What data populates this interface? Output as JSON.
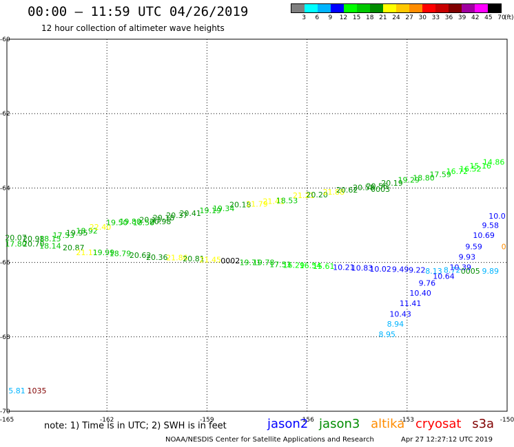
{
  "header": {
    "title": "00:00 – 11:59 UTC 04/26/2019",
    "subtitle": "12 hour collection of altimeter wave heights"
  },
  "colorbar": {
    "colors": [
      "#7f7f7f",
      "#00ffff",
      "#00b4ff",
      "#0000ff",
      "#00ff00",
      "#00c800",
      "#008c00",
      "#ffff00",
      "#ffc800",
      "#ff8c00",
      "#ff0000",
      "#c80000",
      "#800000",
      "#a000a0",
      "#ff00ff",
      "#000000"
    ],
    "labels": [
      "3",
      "6",
      "9",
      "12",
      "15",
      "18",
      "21",
      "24",
      "27",
      "30",
      "33",
      "36",
      "39",
      "42",
      "45",
      "70",
      "(ft)"
    ]
  },
  "chart_data": {
    "type": "scatter",
    "title": "00:00 – 11:59 UTC 04/26/2019",
    "xlim": [
      -165,
      -150
    ],
    "ylim": [
      -70,
      -60
    ],
    "x_ticks": [
      "-165",
      "-162",
      "-159",
      "-156",
      "-153",
      "-150"
    ],
    "y_ticks": [
      "-60",
      "-62",
      "-64",
      "-66",
      "-68",
      "-70"
    ],
    "grid": true,
    "points": [
      {
        "x": -164.73,
        "y": -65.33,
        "text": "20.07",
        "color": "#008c00"
      },
      {
        "x": -164.73,
        "y": -65.5,
        "text": "17.80",
        "color": "#00c800"
      },
      {
        "x": -164.2,
        "y": -65.36,
        "text": "20.98",
        "color": "#008c00"
      },
      {
        "x": -164.2,
        "y": -65.5,
        "text": "20.70",
        "color": "#008c00"
      },
      {
        "x": -163.7,
        "y": -65.36,
        "text": "18.15",
        "color": "#00c800"
      },
      {
        "x": -163.7,
        "y": -65.55,
        "text": "18.14",
        "color": "#00c800"
      },
      {
        "x": -163.3,
        "y": -65.27,
        "text": "17.53",
        "color": "#00c800"
      },
      {
        "x": -162.9,
        "y": -65.2,
        "text": "19.95",
        "color": "#008c00"
      },
      {
        "x": -163.0,
        "y": -65.6,
        "text": "20.87",
        "color": "#008c00"
      },
      {
        "x": -162.6,
        "y": -65.15,
        "text": "18.92",
        "color": "#00c800"
      },
      {
        "x": -162.2,
        "y": -65.05,
        "text": "22.40",
        "color": "#ffff00"
      },
      {
        "x": -162.6,
        "y": -65.73,
        "text": "21.11",
        "color": "#ffff00"
      },
      {
        "x": -162.1,
        "y": -65.73,
        "text": "19.99",
        "color": "#00c800"
      },
      {
        "x": -161.7,
        "y": -64.93,
        "text": "19.50",
        "color": "#00c800"
      },
      {
        "x": -161.3,
        "y": -64.9,
        "text": "19.80",
        "color": "#00c800"
      },
      {
        "x": -161.6,
        "y": -65.76,
        "text": "18.79",
        "color": "#00c800"
      },
      {
        "x": -160.7,
        "y": -64.85,
        "text": "20.13",
        "color": "#008c00"
      },
      {
        "x": -160.9,
        "y": -64.93,
        "text": "18.58",
        "color": "#00c800"
      },
      {
        "x": -160.3,
        "y": -64.8,
        "text": "20.18",
        "color": "#008c00"
      },
      {
        "x": -160.4,
        "y": -64.9,
        "text": "20.98",
        "color": "#008c00"
      },
      {
        "x": -161.0,
        "y": -65.8,
        "text": "20.62",
        "color": "#008c00"
      },
      {
        "x": -160.5,
        "y": -65.86,
        "text": "20.36",
        "color": "#008c00"
      },
      {
        "x": -159.9,
        "y": -64.73,
        "text": "20.37",
        "color": "#008c00"
      },
      {
        "x": -159.5,
        "y": -64.68,
        "text": "20.41",
        "color": "#008c00"
      },
      {
        "x": -159.9,
        "y": -65.87,
        "text": "21.86",
        "color": "#ffff00"
      },
      {
        "x": -159.4,
        "y": -65.9,
        "text": "20.81",
        "color": "#008c00"
      },
      {
        "x": -158.9,
        "y": -64.6,
        "text": "19.19",
        "color": "#00c800"
      },
      {
        "x": -158.5,
        "y": -64.55,
        "text": "19.34",
        "color": "#00c800"
      },
      {
        "x": -158.9,
        "y": -65.92,
        "text": "21.45",
        "color": "#ffff00"
      },
      {
        "x": -158.3,
        "y": -65.95,
        "text": "0002",
        "color": "#000000"
      },
      {
        "x": -158.0,
        "y": -64.45,
        "text": "20.18",
        "color": "#008c00"
      },
      {
        "x": -157.5,
        "y": -64.43,
        "text": "21.79",
        "color": "#ffff00"
      },
      {
        "x": -157.7,
        "y": -66.0,
        "text": "19.71",
        "color": "#00c800"
      },
      {
        "x": -157.3,
        "y": -66.0,
        "text": "19.78",
        "color": "#00c800"
      },
      {
        "x": -157.0,
        "y": -64.35,
        "text": "21.41",
        "color": "#ffff00"
      },
      {
        "x": -156.6,
        "y": -64.33,
        "text": "18.53",
        "color": "#00c800"
      },
      {
        "x": -156.8,
        "y": -66.05,
        "text": "17.53",
        "color": "#00c800"
      },
      {
        "x": -156.4,
        "y": -66.07,
        "text": "16.29",
        "color": "#00ff00"
      },
      {
        "x": -156.1,
        "y": -64.2,
        "text": "21.21",
        "color": "#ffff00"
      },
      {
        "x": -155.7,
        "y": -64.18,
        "text": "20.20",
        "color": "#008c00"
      },
      {
        "x": -155.9,
        "y": -66.08,
        "text": "16.54",
        "color": "#00ff00"
      },
      {
        "x": -155.5,
        "y": -66.1,
        "text": "15.61",
        "color": "#00ff00"
      },
      {
        "x": -155.2,
        "y": -64.1,
        "text": "21.88",
        "color": "#ffff00"
      },
      {
        "x": -154.8,
        "y": -64.05,
        "text": "20.62",
        "color": "#008c00"
      },
      {
        "x": -154.9,
        "y": -66.13,
        "text": "10.21",
        "color": "#0000ff"
      },
      {
        "x": -154.35,
        "y": -66.15,
        "text": "10.83",
        "color": "#0000ff"
      },
      {
        "x": -154.3,
        "y": -63.98,
        "text": "20.58",
        "color": "#008c00"
      },
      {
        "x": -153.9,
        "y": -63.95,
        "text": "20.56",
        "color": "#008c00"
      },
      {
        "x": -153.8,
        "y": -64.03,
        "text": "0003",
        "color": "#008c00"
      },
      {
        "x": -153.8,
        "y": -66.17,
        "text": "10.02",
        "color": "#0000ff"
      },
      {
        "x": -153.45,
        "y": -63.86,
        "text": "20.19",
        "color": "#008c00"
      },
      {
        "x": -153.2,
        "y": -66.18,
        "text": "9.49",
        "color": "#0000ff"
      },
      {
        "x": -152.7,
        "y": -66.2,
        "text": "9.22",
        "color": "#0000ff"
      },
      {
        "x": -152.95,
        "y": -63.78,
        "text": "19.29",
        "color": "#00c800"
      },
      {
        "x": -152.5,
        "y": -63.72,
        "text": "18.80",
        "color": "#00c800"
      },
      {
        "x": -152.2,
        "y": -66.23,
        "text": "8.13",
        "color": "#00b4ff"
      },
      {
        "x": -152.0,
        "y": -63.63,
        "text": "17.59",
        "color": "#00c800"
      },
      {
        "x": -151.5,
        "y": -63.55,
        "text": "16.72",
        "color": "#00ff00"
      },
      {
        "x": -151.65,
        "y": -66.2,
        "text": "8.72",
        "color": "#00b4ff"
      },
      {
        "x": -151.1,
        "y": -63.48,
        "text": "16.52",
        "color": "#00ff00"
      },
      {
        "x": -150.8,
        "y": -63.4,
        "text": "15.16",
        "color": "#00ff00"
      },
      {
        "x": -150.4,
        "y": -63.3,
        "text": "14.86",
        "color": "#00ff00"
      },
      {
        "x": -151.1,
        "y": -66.23,
        "text": "0005",
        "color": "#008c00"
      },
      {
        "x": -150.5,
        "y": -66.23,
        "text": "9.89",
        "color": "#00b4ff"
      },
      {
        "x": -151.9,
        "y": -66.37,
        "text": "10.64",
        "color": "#0000ff"
      },
      {
        "x": -151.4,
        "y": -66.13,
        "text": "10.39",
        "color": "#0000ff"
      },
      {
        "x": -152.4,
        "y": -66.55,
        "text": "9.76",
        "color": "#0000ff"
      },
      {
        "x": -152.6,
        "y": -66.82,
        "text": "10.40",
        "color": "#0000ff"
      },
      {
        "x": -152.9,
        "y": -67.1,
        "text": "11.41",
        "color": "#0000ff"
      },
      {
        "x": -153.2,
        "y": -67.38,
        "text": "10.43",
        "color": "#0000ff"
      },
      {
        "x": -153.35,
        "y": -67.65,
        "text": "8.94",
        "color": "#00b4ff"
      },
      {
        "x": -153.6,
        "y": -67.93,
        "text": "8.95",
        "color": "#00b4ff"
      },
      {
        "x": -151.0,
        "y": -65.57,
        "text": "9.59",
        "color": "#0000ff"
      },
      {
        "x": -151.2,
        "y": -65.85,
        "text": "9.93",
        "color": "#0000ff"
      },
      {
        "x": -150.7,
        "y": -65.27,
        "text": "10.69",
        "color": "#0000ff"
      },
      {
        "x": -150.5,
        "y": -65.0,
        "text": "9.58",
        "color": "#0000ff"
      },
      {
        "x": -150.3,
        "y": -64.75,
        "text": "10.0",
        "color": "#0000ff"
      },
      {
        "x": -150.1,
        "y": -65.57,
        "text": "0",
        "color": "#ff8c00"
      },
      {
        "x": -164.7,
        "y": -69.45,
        "text": "5.81",
        "color": "#00b4ff"
      },
      {
        "x": -164.1,
        "y": -69.45,
        "text": "1035",
        "color": "#800000"
      }
    ]
  },
  "footer": {
    "note": "note: 1) Time is in UTC; 2) SWH is in feet",
    "missions": [
      {
        "name": "jason2",
        "color": "#0000ff"
      },
      {
        "name": "jason3",
        "color": "#008c00"
      },
      {
        "name": "altika",
        "color": "#ff8c00"
      },
      {
        "name": "cryosat",
        "color": "#ff0000"
      },
      {
        "name": "s3a",
        "color": "#800000"
      }
    ],
    "credit": "NOAA/NESDIS Center for Satellite Applications and Research",
    "timestamp": "Apr 27 12:27:12 UTC 2019"
  }
}
